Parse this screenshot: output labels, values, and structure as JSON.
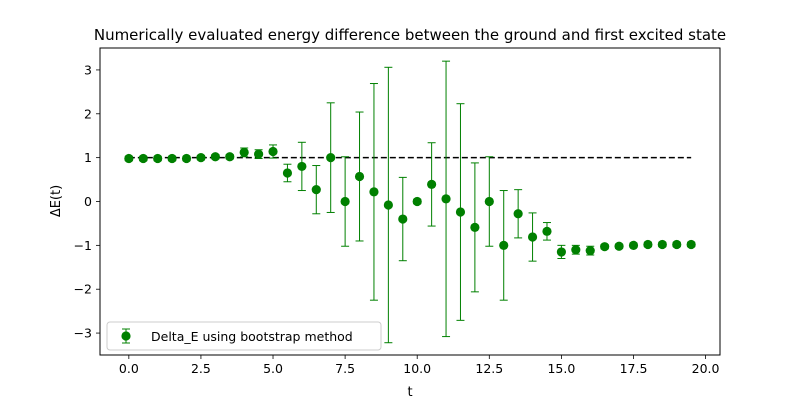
{
  "chart_data": {
    "type": "scatter",
    "title": "Numerically evaluated energy difference between the ground and first excited state",
    "xlabel": "t",
    "ylabel": "ΔE(t)",
    "xlim": [
      -1.0,
      20.5
    ],
    "ylim": [
      -3.5,
      3.5
    ],
    "x_ticks": [
      0.0,
      2.5,
      5.0,
      7.5,
      10.0,
      12.5,
      15.0,
      17.5,
      20.0
    ],
    "x_tick_labels": [
      "0.0",
      "2.5",
      "5.0",
      "7.5",
      "10.0",
      "12.5",
      "15.0",
      "17.5",
      "20.0"
    ],
    "y_ticks": [
      -3,
      -2,
      -1,
      0,
      1,
      2,
      3
    ],
    "y_tick_labels": [
      "−3",
      "−2",
      "−1",
      "0",
      "1",
      "2",
      "3"
    ],
    "grid": false,
    "legend_position": "bottom-left",
    "series": [
      {
        "name": "Delta_E using bootstrap method",
        "color": "#008000",
        "marker": "circle",
        "errorbars": true,
        "x": [
          0.0,
          0.5,
          1.0,
          1.5,
          2.0,
          2.5,
          3.0,
          3.5,
          4.0,
          4.5,
          5.0,
          5.5,
          6.0,
          6.5,
          7.0,
          7.5,
          8.0,
          8.5,
          9.0,
          9.5,
          10.0,
          10.5,
          11.0,
          11.5,
          12.0,
          12.5,
          13.0,
          13.5,
          14.0,
          14.5,
          15.0,
          15.5,
          16.0,
          16.5,
          17.0,
          17.5,
          18.0,
          18.5,
          19.0,
          19.5
        ],
        "y": [
          0.98,
          0.98,
          0.98,
          0.98,
          0.98,
          1.0,
          1.02,
          1.02,
          1.12,
          1.08,
          1.14,
          0.65,
          0.8,
          0.27,
          1.0,
          0.0,
          0.57,
          0.22,
          -0.08,
          -0.4,
          0.0,
          0.39,
          0.06,
          -0.24,
          -0.59,
          0.0,
          -1.0,
          -0.28,
          -0.81,
          -0.68,
          -1.15,
          -1.1,
          -1.12,
          -1.03,
          -1.02,
          -1.0,
          -0.98,
          -0.98,
          -0.98,
          -0.98
        ],
        "yerr": [
          0.05,
          0.05,
          0.05,
          0.05,
          0.05,
          0.05,
          0.05,
          0.05,
          0.1,
          0.1,
          0.15,
          0.2,
          0.55,
          0.55,
          1.25,
          1.02,
          1.47,
          2.47,
          3.14,
          0.95,
          0.05,
          0.95,
          3.14,
          2.47,
          1.47,
          1.02,
          1.25,
          0.55,
          0.55,
          0.2,
          0.15,
          0.1,
          0.1,
          0.05,
          0.05,
          0.05,
          0.05,
          0.05,
          0.05,
          0.05
        ]
      }
    ],
    "reference_line": {
      "y": 1.0,
      "x_range": [
        0.0,
        19.5
      ],
      "color": "#000000",
      "style": "dashed"
    }
  }
}
